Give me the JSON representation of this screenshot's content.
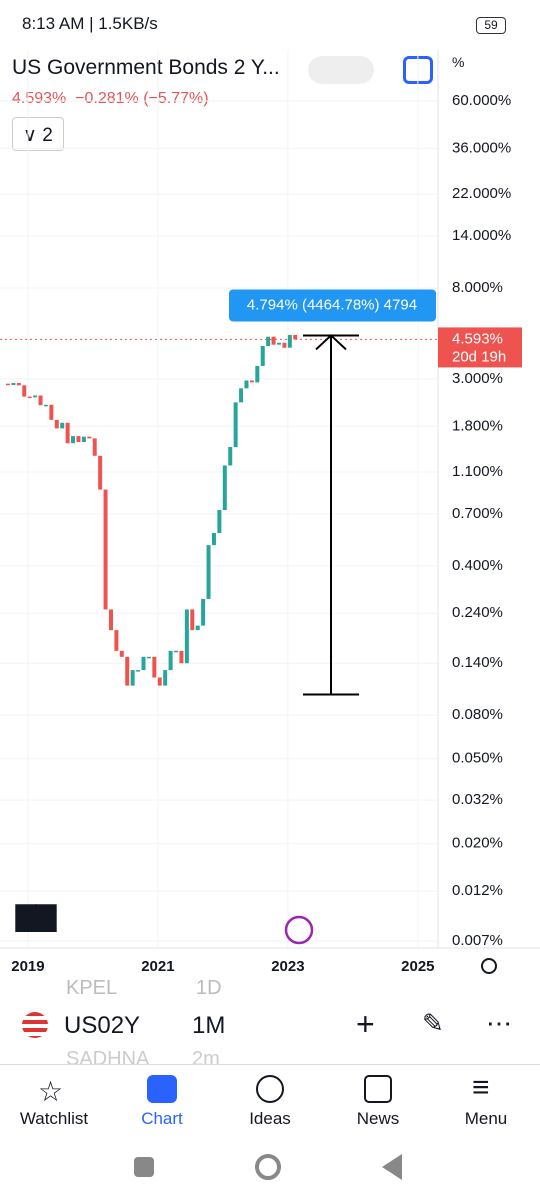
{
  "status": {
    "time": "8:13 AM | 1.5KB/s",
    "battery": "59"
  },
  "header": {
    "title": "US Government Bonds 2 Y...",
    "price": "4.593%",
    "change": "−0.281% (−5.77%)",
    "count": "2",
    "unit": "%"
  },
  "chart_data": {
    "type": "candlestick",
    "log_scale": true,
    "ylim": [
      0.0065,
      104
    ],
    "yticks": [
      {
        "value": 60,
        "label": "60.000%"
      },
      {
        "value": 36,
        "label": "36.000%"
      },
      {
        "value": 22,
        "label": "22.000%"
      },
      {
        "value": 14,
        "label": "14.000%"
      },
      {
        "value": 8,
        "label": "8.000%"
      },
      {
        "value": 3,
        "label": "3.000%"
      },
      {
        "value": 1.8,
        "label": "1.800%"
      },
      {
        "value": 1.1,
        "label": "1.100%"
      },
      {
        "value": 0.7,
        "label": "0.700%"
      },
      {
        "value": 0.4,
        "label": "0.400%"
      },
      {
        "value": 0.24,
        "label": "0.240%"
      },
      {
        "value": 0.14,
        "label": "0.140%"
      },
      {
        "value": 0.08,
        "label": "0.080%"
      },
      {
        "value": 0.05,
        "label": "0.050%"
      },
      {
        "value": 0.032,
        "label": "0.032%"
      },
      {
        "value": 0.02,
        "label": "0.020%"
      },
      {
        "value": 0.012,
        "label": "0.012%"
      },
      {
        "value": 0.007,
        "label": "0.007%"
      }
    ],
    "xlim": [
      2018.57,
      2025.31
    ],
    "xticks": [
      2019,
      2021,
      2023,
      2025
    ],
    "up_color": "#26a69a",
    "down_color": "#ef5350",
    "grid": true,
    "open": [
      2.85,
      2.81,
      2.87,
      2.8,
      2.48,
      2.46,
      2.51,
      2.26,
      2.27,
      1.93,
      1.76,
      1.87,
      1.5,
      1.62,
      1.52,
      1.61,
      1.58,
      1.31,
      0.91,
      0.25,
      0.2,
      0.16,
      0.15,
      0.11,
      0.13,
      0.13,
      0.15,
      0.15,
      0.12,
      0.11,
      0.13,
      0.16,
      0.16,
      0.14,
      0.25,
      0.2,
      0.21,
      0.28,
      0.5,
      0.57,
      0.73,
      1.18,
      1.44,
      2.33,
      2.71,
      2.95,
      2.89,
      3.45,
      4.28,
      4.73,
      4.34,
      4.43,
      4.2,
      4.82
    ],
    "close": [
      2.81,
      2.87,
      2.8,
      2.48,
      2.46,
      2.51,
      2.26,
      2.27,
      1.93,
      1.76,
      1.87,
      1.5,
      1.62,
      1.52,
      1.61,
      1.58,
      1.31,
      0.91,
      0.25,
      0.2,
      0.16,
      0.15,
      0.11,
      0.13,
      0.13,
      0.15,
      0.15,
      0.12,
      0.11,
      0.13,
      0.16,
      0.16,
      0.14,
      0.25,
      0.2,
      0.21,
      0.28,
      0.5,
      0.57,
      0.73,
      1.18,
      1.44,
      2.33,
      2.71,
      2.95,
      2.89,
      3.45,
      4.28,
      4.73,
      4.34,
      4.43,
      4.2,
      4.82,
      4.59
    ],
    "last": {
      "value": 4.593,
      "label": "4.593%",
      "countdown": "20d 19h",
      "color": "#ef5350"
    },
    "measure": {
      "from": 0.1,
      "to": 4.794,
      "label": "4.794% (4464.78%) 4794"
    }
  },
  "symbol_bar": {
    "ghost_top": "KPEL",
    "ghost_top_tf": "1D",
    "symbol": "US02Y",
    "interval": "1M",
    "ghost_bottom": "SADHNA",
    "ghost_bottom_tf": "2m"
  },
  "tabs": [
    "Watchlist",
    "Chart",
    "Ideas",
    "News",
    "Menu"
  ]
}
